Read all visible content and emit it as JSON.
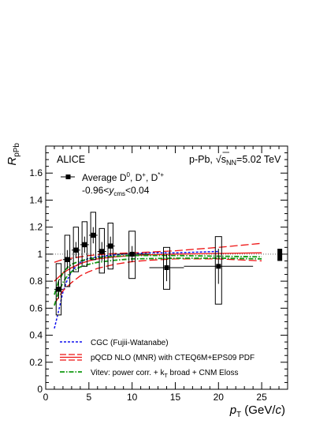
{
  "chart_data": {
    "type": "scatter",
    "experiment": "ALICE",
    "system": "p-Pb,",
    "energy": {
      "sqrt": "s",
      "sub": "NN",
      "value": "=5.02 TeV"
    },
    "ylabel": {
      "main": "R",
      "sub": "pPb"
    },
    "xlabel": {
      "main": "p",
      "sub": "T",
      "unit_prefix": " (GeV/",
      "unit_c": "c",
      "unit_suffix": ")"
    },
    "xlim": [
      0,
      28
    ],
    "ylim": [
      0,
      1.8
    ],
    "x_ticks": [
      0,
      5,
      10,
      15,
      20,
      25
    ],
    "x_tick_labels": [
      "0",
      "5",
      "10",
      "15",
      "20",
      "25"
    ],
    "y_ticks": [
      0,
      0.2,
      0.4,
      0.6,
      0.8,
      1,
      1.2,
      1.4,
      1.6
    ],
    "y_tick_labels": [
      "0",
      "0.2",
      "0.4",
      "0.6",
      "0.8",
      "1",
      "1.2",
      "1.4",
      "1.6"
    ],
    "reference_line": 1,
    "data_legend": {
      "label": "Average D",
      "sup0": "0",
      "sep1": ", D",
      "sup1": "+",
      "sep2": ", D",
      "sup2": "*+",
      "rapidity": {
        "prefix": "-0.96<",
        "var": "y",
        "sub": "cms",
        "suffix": "<0.04"
      }
    },
    "data_series": {
      "name": "Average D0, D+, D*+",
      "points": [
        {
          "x": 1.5,
          "xerr": 0.5,
          "y": 0.74,
          "stat": 0.07,
          "sys_low": 0.55,
          "sys_high": 0.93
        },
        {
          "x": 2.5,
          "xerr": 0.5,
          "y": 0.96,
          "stat": 0.07,
          "sys_low": 0.76,
          "sys_high": 1.14
        },
        {
          "x": 3.5,
          "xerr": 0.5,
          "y": 1.03,
          "stat": 0.06,
          "sys_low": 0.87,
          "sys_high": 1.2
        },
        {
          "x": 4.5,
          "xerr": 0.5,
          "y": 1.07,
          "stat": 0.06,
          "sys_low": 0.91,
          "sys_high": 1.24
        },
        {
          "x": 5.5,
          "xerr": 0.5,
          "y": 1.14,
          "stat": 0.06,
          "sys_low": 0.96,
          "sys_high": 1.31
        },
        {
          "x": 6.5,
          "xerr": 0.5,
          "y": 1.02,
          "stat": 0.07,
          "sys_low": 0.86,
          "sys_high": 1.19
        },
        {
          "x": 7.5,
          "xerr": 0.5,
          "y": 1.06,
          "stat": 0.07,
          "sys_low": 0.89,
          "sys_high": 1.23
        },
        {
          "x": 10.0,
          "xerr": 2.0,
          "y": 1.0,
          "stat": 0.06,
          "sys_low": 0.82,
          "sys_high": 1.17
        },
        {
          "x": 14.0,
          "xerr": 2.0,
          "y": 0.9,
          "stat": 0.1,
          "sys_low": 0.74,
          "sys_high": 1.05
        },
        {
          "x": 20.0,
          "xerr": 4.0,
          "y": 0.91,
          "stat": 0.13,
          "sys_low": 0.63,
          "sys_high": 1.13
        }
      ],
      "norm_uncertainty": {
        "x": 27.1,
        "low": 0.95,
        "high": 1.04
      }
    },
    "models": [
      {
        "name": "CGC (Fujii-Watanabe)",
        "color": "#1010ee",
        "style": "dashed",
        "x": [
          1.0,
          1.5,
          2.0,
          2.5,
          3.0,
          3.5,
          4.0,
          5.0,
          6.0,
          8.0,
          10.0,
          12.0,
          15.0,
          20.0
        ],
        "y": [
          0.45,
          0.58,
          0.72,
          0.81,
          0.87,
          0.91,
          0.94,
          0.97,
          0.98,
          0.995,
          1.005,
          1.01,
          1.01,
          1.02
        ]
      },
      {
        "name": "pQCD NLO (MNR) with CTEQ6M+EPS09 PDF",
        "color": "#ee1111",
        "style": "band",
        "x": [
          1.0,
          1.5,
          2.0,
          3.0,
          4.0,
          5.0,
          6.0,
          8.0,
          10.0,
          12.0,
          15.0,
          20.0,
          25.0
        ],
        "central": [
          0.8,
          0.83,
          0.86,
          0.9,
          0.93,
          0.95,
          0.965,
          0.98,
          0.99,
          0.995,
          1.0,
          1.005,
          1.01
        ],
        "upper": [
          0.94,
          0.95,
          0.96,
          0.97,
          0.98,
          0.99,
          0.995,
          1.005,
          1.01,
          1.015,
          1.025,
          1.05,
          1.08
        ],
        "lower": [
          0.63,
          0.68,
          0.73,
          0.79,
          0.84,
          0.87,
          0.895,
          0.925,
          0.945,
          0.955,
          0.965,
          0.965,
          0.95
        ]
      },
      {
        "name_prefix": "Vitev: power corr. + k",
        "name_sub": "T",
        "name_suffix": " broad + CNM Eloss",
        "color": "#119911",
        "style": "dashdot",
        "x": [
          1.0,
          1.5,
          2.0,
          2.5,
          3.0,
          4.0,
          5.0,
          6.0,
          8.0,
          10.0,
          15.0,
          20.0,
          25.0
        ],
        "upper": [
          0.7,
          0.8,
          0.86,
          0.9,
          0.925,
          0.95,
          0.965,
          0.975,
          0.985,
          0.99,
          0.99,
          0.985,
          0.98
        ],
        "lower": [
          0.62,
          0.72,
          0.79,
          0.84,
          0.87,
          0.905,
          0.925,
          0.94,
          0.955,
          0.965,
          0.97,
          0.97,
          0.965
        ]
      }
    ]
  }
}
